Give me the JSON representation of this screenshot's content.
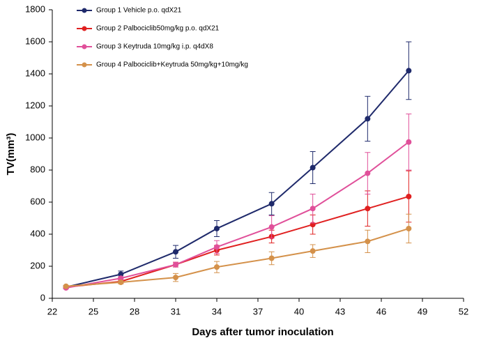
{
  "chart_data": {
    "type": "line",
    "x_label": "Days after tumor inoculation",
    "y_label": "TV(mm³)",
    "x": [
      23,
      27,
      31,
      34,
      38,
      41,
      45,
      48
    ],
    "xlim": [
      22,
      52
    ],
    "xticks": [
      22,
      25,
      28,
      31,
      34,
      37,
      40,
      43,
      46,
      49,
      52
    ],
    "ylim": [
      0,
      1800
    ],
    "yticks": [
      0,
      200,
      400,
      600,
      800,
      1000,
      1200,
      1400,
      1600,
      1800
    ],
    "grid": false,
    "legend": "upper left",
    "series": [
      {
        "name": "Group 1 Vehicle p.o. qdX21",
        "color": "#1f2a6b",
        "values": [
          70,
          150,
          290,
          435,
          590,
          815,
          1120,
          1420
        ],
        "errors": [
          10,
          20,
          40,
          50,
          70,
          100,
          140,
          180
        ]
      },
      {
        "name": "Group 2 Palbociclib50mg/kg p.o. qdX21",
        "color": "#e02020",
        "values": [
          70,
          105,
          210,
          300,
          385,
          460,
          560,
          635
        ],
        "errors": [
          5,
          10,
          15,
          30,
          40,
          60,
          110,
          160
        ]
      },
      {
        "name": "Group 3 Keytruda 10mg/kg i.p. q4dX8",
        "color": "#e0509a",
        "values": [
          65,
          125,
          210,
          320,
          445,
          560,
          780,
          975
        ],
        "errors": [
          5,
          10,
          15,
          40,
          70,
          90,
          130,
          175
        ]
      },
      {
        "name": "Group 4 Palbociclib+Keytruda 50mg/kg+10mg/kg",
        "color": "#d4914a",
        "values": [
          75,
          100,
          130,
          195,
          250,
          295,
          355,
          435
        ],
        "errors": [
          5,
          10,
          25,
          35,
          40,
          40,
          70,
          90
        ]
      }
    ]
  }
}
